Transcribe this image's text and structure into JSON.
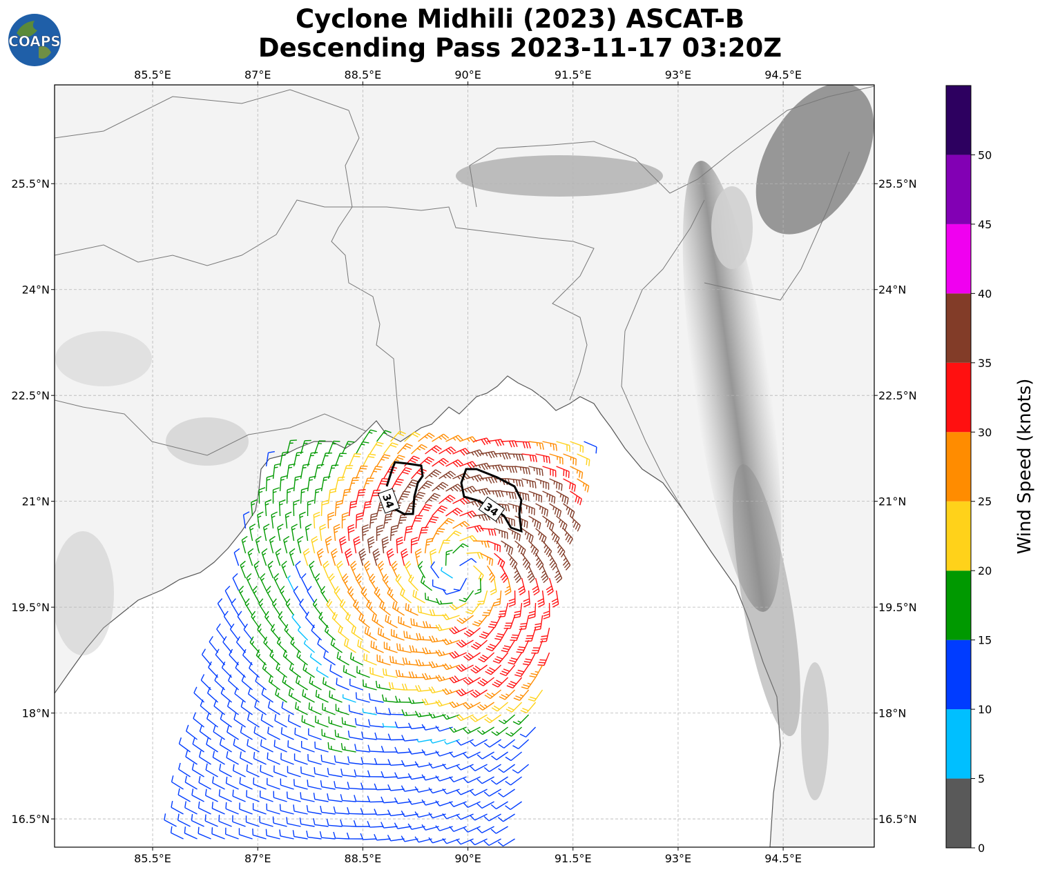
{
  "title": {
    "line1": "Cyclone Midhili (2023) ASCAT-B",
    "line2": "Descending Pass 2023-11-17 03:20Z"
  },
  "logo": {
    "text": "COAPS",
    "icon": "globe-logo-icon"
  },
  "map": {
    "lon_range": [
      84.1,
      95.8
    ],
    "lat_range": [
      16.1,
      26.9
    ],
    "lon_ticks": [
      "85.5°E",
      "87°E",
      "88.5°E",
      "90°E",
      "91.5°E",
      "93°E",
      "94.5°E"
    ],
    "lon_tick_values": [
      85.5,
      87,
      88.5,
      90,
      91.5,
      93,
      94.5
    ],
    "lat_ticks": [
      "16.5°N",
      "18°N",
      "19.5°N",
      "21°N",
      "22.5°N",
      "24°N",
      "25.5°N"
    ],
    "lat_tick_values": [
      16.5,
      18,
      19.5,
      21,
      22.5,
      24,
      25.5
    ],
    "grid": true,
    "storm_center": {
      "lon": 89.9,
      "lat": 20.0
    },
    "contour_label": "34"
  },
  "colorbar": {
    "label": "Wind Speed (knots)",
    "ticks": [
      "0",
      "5",
      "10",
      "15",
      "20",
      "25",
      "30",
      "35",
      "40",
      "45",
      "50"
    ],
    "bins": [
      {
        "min": 0,
        "max": 5,
        "color": "#595959"
      },
      {
        "min": 5,
        "max": 10,
        "color": "#00bfff"
      },
      {
        "min": 10,
        "max": 15,
        "color": "#003cff"
      },
      {
        "min": 15,
        "max": 20,
        "color": "#009900"
      },
      {
        "min": 20,
        "max": 25,
        "color": "#ffd21a"
      },
      {
        "min": 25,
        "max": 30,
        "color": "#ff8c00"
      },
      {
        "min": 30,
        "max": 35,
        "color": "#ff1010"
      },
      {
        "min": 35,
        "max": 40,
        "color": "#823c28"
      },
      {
        "min": 40,
        "max": 45,
        "color": "#f000f0"
      },
      {
        "min": 45,
        "max": 50,
        "color": "#8200b4"
      },
      {
        "min": 50,
        "max": 55,
        "color": "#2d0060"
      }
    ]
  }
}
